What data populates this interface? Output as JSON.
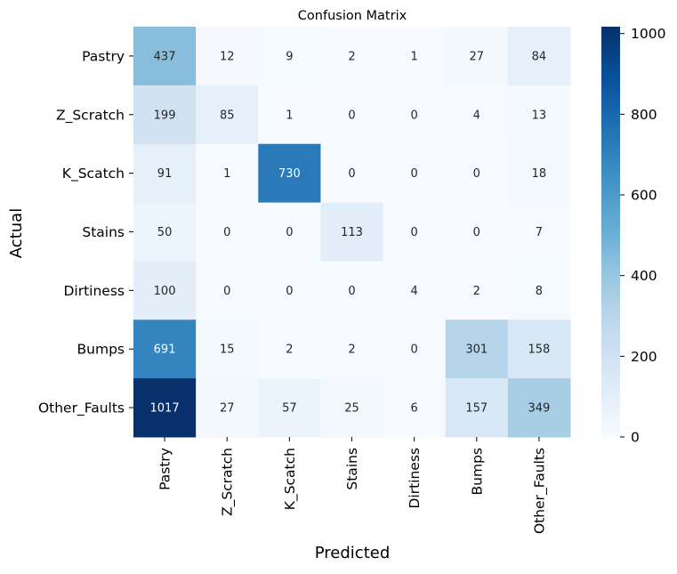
{
  "chart_data": {
    "type": "heatmap",
    "title": "Confusion Matrix",
    "xlabel": "Predicted",
    "ylabel": "Actual",
    "x_categories": [
      "Pastry",
      "Z_Scratch",
      "K_Scatch",
      "Stains",
      "Dirtiness",
      "Bumps",
      "Other_Faults"
    ],
    "y_categories": [
      "Pastry",
      "Z_Scratch",
      "K_Scatch",
      "Stains",
      "Dirtiness",
      "Bumps",
      "Other_Faults"
    ],
    "values": [
      [
        437,
        12,
        9,
        2,
        1,
        27,
        84
      ],
      [
        199,
        85,
        1,
        0,
        0,
        4,
        13
      ],
      [
        91,
        1,
        730,
        0,
        0,
        0,
        18
      ],
      [
        50,
        0,
        0,
        113,
        0,
        0,
        7
      ],
      [
        100,
        0,
        0,
        0,
        4,
        2,
        8
      ],
      [
        691,
        15,
        2,
        2,
        0,
        301,
        158
      ],
      [
        1017,
        27,
        57,
        25,
        6,
        157,
        349
      ]
    ],
    "colormap": "Blues",
    "vmin": 0,
    "vmax": 1017,
    "colorbar_ticks": [
      0,
      200,
      400,
      600,
      800,
      1000
    ]
  }
}
